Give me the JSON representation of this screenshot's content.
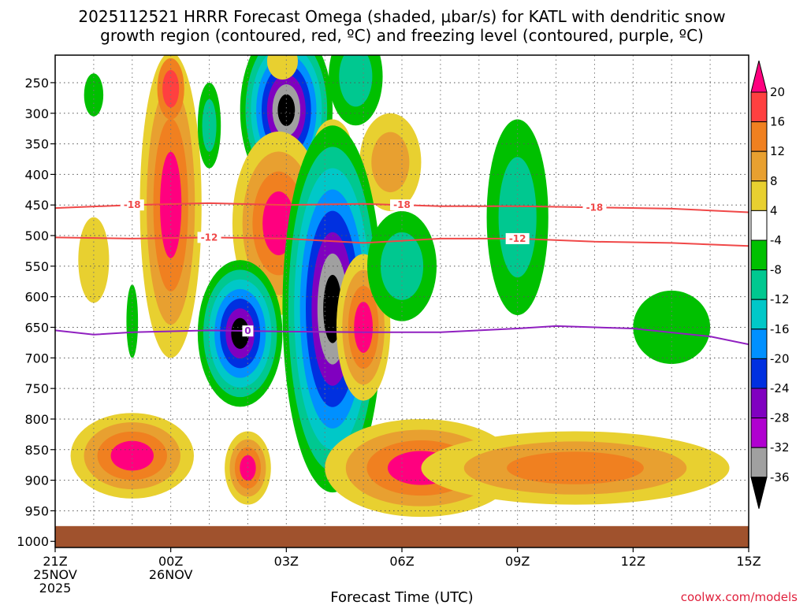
{
  "chart_data": {
    "type": "heatmap",
    "title_lines": [
      "2025112521 HRRR Forecast Omega (shaded, μbar/s) for KATL with dendritic snow",
      "growth region (contoured, red, ºC) and freezing level (contoured, purple, ºC)"
    ],
    "xlabel": "Forecast Time (UTC)",
    "credit": "coolwx.com/models",
    "x_range_hours": [
      0,
      18
    ],
    "y_range_hpa": [
      205,
      1010
    ],
    "x_ticks": [
      {
        "hour": 0,
        "lines": [
          "21Z",
          "25NOV",
          "2025"
        ]
      },
      {
        "hour": 3,
        "lines": [
          "00Z",
          "26NOV"
        ]
      },
      {
        "hour": 6,
        "lines": [
          "03Z"
        ]
      },
      {
        "hour": 9,
        "lines": [
          "06Z"
        ]
      },
      {
        "hour": 12,
        "lines": [
          "09Z"
        ]
      },
      {
        "hour": 15,
        "lines": [
          "12Z"
        ]
      },
      {
        "hour": 18,
        "lines": [
          "15Z"
        ]
      }
    ],
    "y_ticks": [
      250,
      300,
      350,
      400,
      450,
      500,
      550,
      600,
      650,
      700,
      750,
      800,
      850,
      900,
      950,
      1000
    ],
    "ground_top_hpa": 975,
    "ground_color": "#a0522d",
    "colorbar": {
      "labels": [
        "20",
        "16",
        "12",
        "8",
        "4",
        "-4",
        "-8",
        "-12",
        "-16",
        "-20",
        "-24",
        "-28",
        "-32",
        "-36"
      ],
      "colors": [
        "#ff007f",
        "#ff4040",
        "#f08020",
        "#e8a030",
        "#e8d030",
        "#ffffff",
        "#00c000",
        "#00c890",
        "#00c8c8",
        "#0090ff",
        "#0030e0",
        "#8000c0",
        "#b000d0",
        "#a0a0a0",
        "#000000"
      ]
    },
    "omega_blobs": [
      {
        "cx": 1.0,
        "cy": 270,
        "rx": 0.25,
        "ry": 35,
        "levels": [
          "#00c000"
        ]
      },
      {
        "cx": 3.0,
        "cy": 450,
        "rx": 0.8,
        "ry": 250,
        "levels": [
          "#e8d030",
          "#e8a030",
          "#f08020",
          "#ff007f"
        ]
      },
      {
        "cx": 3.0,
        "cy": 260,
        "rx": 0.35,
        "ry": 50,
        "levels": [
          "#f08020",
          "#ff4040"
        ]
      },
      {
        "cx": 1.0,
        "cy": 540,
        "rx": 0.4,
        "ry": 70,
        "levels": [
          "#e8d030"
        ]
      },
      {
        "cx": 2.0,
        "cy": 640,
        "rx": 0.15,
        "ry": 60,
        "levels": [
          "#00c000"
        ]
      },
      {
        "cx": 4.0,
        "cy": 320,
        "rx": 0.3,
        "ry": 70,
        "levels": [
          "#00c000",
          "#00c890"
        ]
      },
      {
        "cx": 6.0,
        "cy": 295,
        "rx": 1.2,
        "ry": 140,
        "levels": [
          "#00c000",
          "#00c890",
          "#00c8c8",
          "#0090ff",
          "#0030e0",
          "#8000c0",
          "#a0a0a0",
          "#000000"
        ]
      },
      {
        "cx": 7.8,
        "cy": 240,
        "rx": 0.7,
        "ry": 80,
        "levels": [
          "#00c000",
          "#00c890"
        ]
      },
      {
        "cx": 5.9,
        "cy": 215,
        "rx": 0.4,
        "ry": 30,
        "levels": [
          "#e8d030"
        ]
      },
      {
        "cx": 7.2,
        "cy": 360,
        "rx": 0.5,
        "ry": 50,
        "levels": [
          "#e8d030",
          "#e8a030"
        ]
      },
      {
        "cx": 8.7,
        "cy": 380,
        "rx": 0.8,
        "ry": 80,
        "levels": [
          "#e8d030",
          "#e8a030"
        ]
      },
      {
        "cx": 5.8,
        "cy": 480,
        "rx": 1.2,
        "ry": 150,
        "levels": [
          "#e8d030",
          "#e8a030",
          "#f08020",
          "#ff007f"
        ]
      },
      {
        "cx": 4.8,
        "cy": 660,
        "rx": 1.1,
        "ry": 120,
        "levels": [
          "#00c000",
          "#00c890",
          "#00c8c8",
          "#0090ff",
          "#0030e0",
          "#8000c0",
          "#000000"
        ]
      },
      {
        "cx": 7.2,
        "cy": 620,
        "rx": 1.3,
        "ry": 300,
        "levels": [
          "#00c000",
          "#00c890",
          "#00c8c8",
          "#0090ff",
          "#0030e0",
          "#8000c0",
          "#a0a0a0",
          "#000000"
        ]
      },
      {
        "cx": 8.0,
        "cy": 650,
        "rx": 0.7,
        "ry": 120,
        "levels": [
          "#e8d030",
          "#e8a030",
          "#f08020",
          "#ff007f"
        ]
      },
      {
        "cx": 9.0,
        "cy": 550,
        "rx": 0.9,
        "ry": 90,
        "levels": [
          "#00c000",
          "#00c890"
        ]
      },
      {
        "cx": 5.0,
        "cy": 880,
        "rx": 0.6,
        "ry": 60,
        "levels": [
          "#e8d030",
          "#e8a030",
          "#f08020",
          "#ff007f"
        ]
      },
      {
        "cx": 2.0,
        "cy": 860,
        "rx": 1.6,
        "ry": 70,
        "levels": [
          "#e8d030",
          "#e8a030",
          "#f08020",
          "#ff007f"
        ]
      },
      {
        "cx": 9.5,
        "cy": 880,
        "rx": 2.5,
        "ry": 80,
        "levels": [
          "#e8d030",
          "#e8a030",
          "#f08020",
          "#ff007f"
        ]
      },
      {
        "cx": 13.5,
        "cy": 880,
        "rx": 4.0,
        "ry": 60,
        "levels": [
          "#e8d030",
          "#e8a030",
          "#f08020"
        ]
      },
      {
        "cx": 12.0,
        "cy": 470,
        "rx": 0.8,
        "ry": 160,
        "levels": [
          "#00c000",
          "#00c890"
        ]
      },
      {
        "cx": 16.0,
        "cy": 650,
        "rx": 1.0,
        "ry": 60,
        "levels": [
          "#00c000"
        ]
      }
    ],
    "contours": [
      {
        "name": "dgz-minus18",
        "color": "#f04848",
        "label": "-18",
        "hours": [
          0,
          2,
          4,
          6,
          8,
          10,
          12,
          14,
          16,
          18
        ],
        "hpa": [
          455,
          450,
          447,
          450,
          448,
          452,
          452,
          454,
          456,
          462
        ],
        "label_hours": [
          2,
          9,
          14
        ]
      },
      {
        "name": "dgz-minus12",
        "color": "#f04848",
        "label": "-12",
        "hours": [
          0,
          2,
          4,
          6,
          8,
          10,
          12,
          14,
          16,
          18
        ],
        "hpa": [
          503,
          505,
          503,
          505,
          512,
          505,
          505,
          510,
          512,
          517
        ],
        "label_hours": [
          4,
          12
        ]
      },
      {
        "name": "freezing-level-0",
        "color": "#9020c0",
        "label": "0",
        "hours": [
          0,
          1,
          2,
          4,
          6,
          8,
          10,
          12,
          13,
          15,
          17,
          18
        ],
        "hpa": [
          655,
          662,
          658,
          655,
          657,
          658,
          658,
          652,
          648,
          652,
          665,
          678
        ],
        "label_hours": [
          5
        ]
      }
    ]
  }
}
